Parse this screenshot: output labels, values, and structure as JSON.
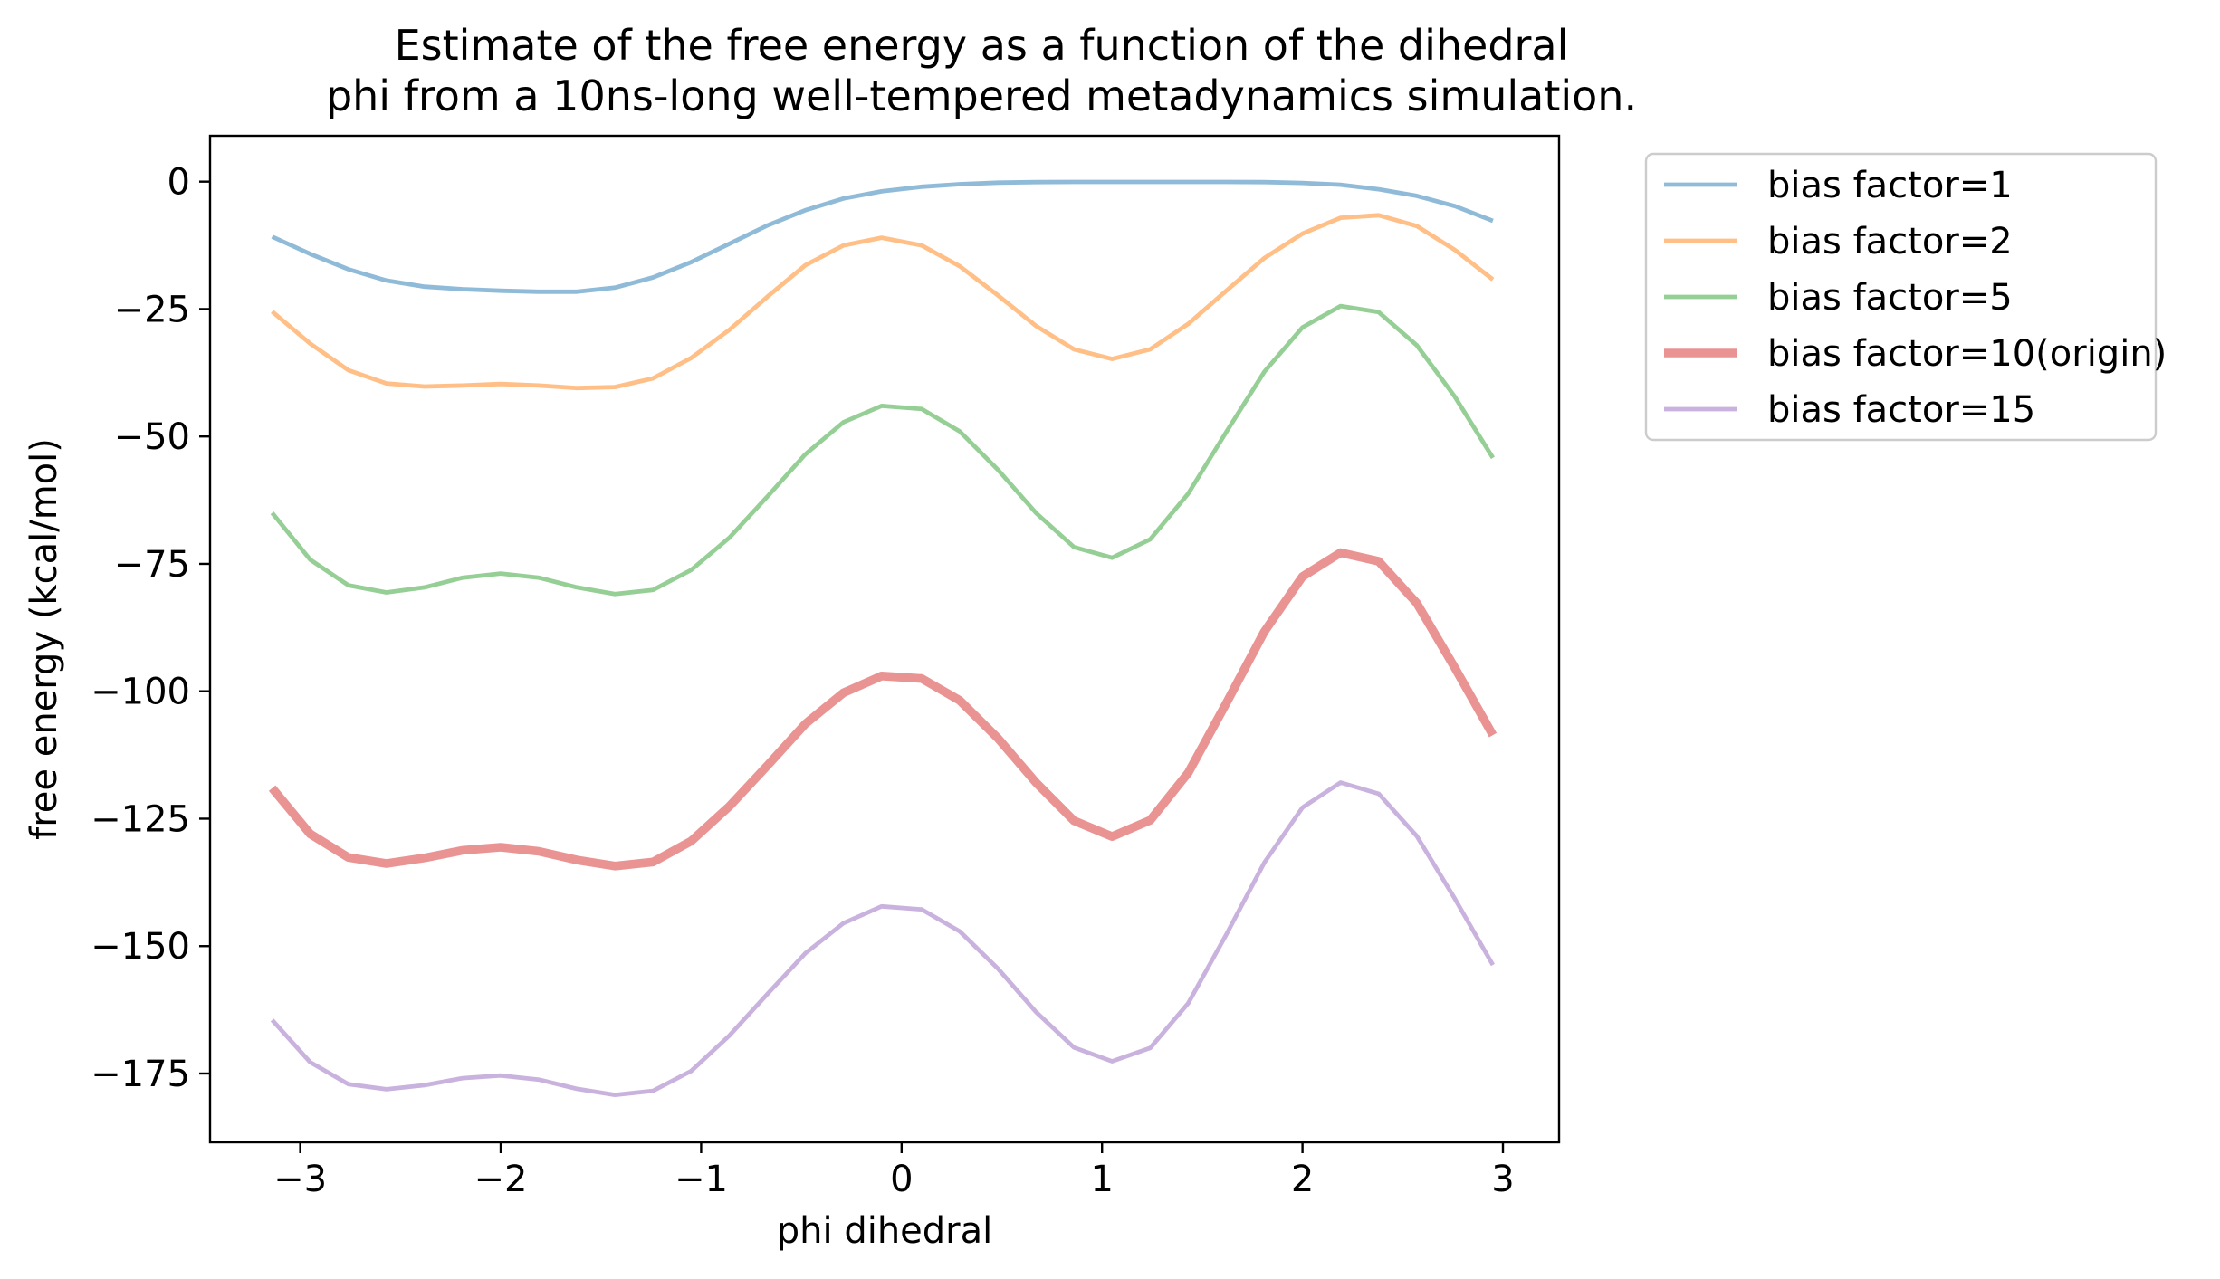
{
  "chart_data": {
    "type": "line",
    "title": [
      "Estimate of the free energy as a function of the dihedral",
      "phi from a 10ns-long well-tempered metadynamics simulation."
    ],
    "xlabel": "phi dihedral",
    "ylabel": "free energy (kcal/mol)",
    "xlim": [
      -3.45,
      3.28
    ],
    "ylim": [
      -188.5,
      9
    ],
    "xticks": [
      -3,
      -2,
      -1,
      0,
      1,
      2,
      3
    ],
    "xtick_labels": [
      "−3",
      "−2",
      "−1",
      "0",
      "1",
      "2",
      "3"
    ],
    "yticks": [
      0,
      -25,
      -50,
      -75,
      -100,
      -125,
      -150,
      -175
    ],
    "ytick_labels": [
      "0",
      "−25",
      "−50",
      "−75",
      "−100",
      "−125",
      "−150",
      "−175"
    ],
    "grid": false,
    "legend_position": "outside-right-top",
    "x": [
      -3.14,
      -2.95,
      -2.76,
      -2.57,
      -2.38,
      -2.19,
      -2.0,
      -1.81,
      -1.62,
      -1.43,
      -1.24,
      -1.05,
      -0.86,
      -0.67,
      -0.48,
      -0.29,
      -0.1,
      0.1,
      0.29,
      0.48,
      0.67,
      0.86,
      1.05,
      1.24,
      1.43,
      1.62,
      1.81,
      2.0,
      2.19,
      2.38,
      2.57,
      2.76,
      2.95
    ],
    "series": [
      {
        "name": "bias factor=1",
        "color": "#1f77b4",
        "width": 2,
        "values": [
          -10.8,
          -14.2,
          -17.2,
          -19.4,
          -20.6,
          -21.1,
          -21.4,
          -21.6,
          -21.6,
          -20.8,
          -18.8,
          -15.8,
          -12.2,
          -8.6,
          -5.6,
          -3.3,
          -1.9,
          -1.0,
          -0.5,
          -0.2,
          -0.1,
          -0.05,
          -0.05,
          -0.05,
          -0.05,
          -0.05,
          -0.1,
          -0.25,
          -0.6,
          -1.5,
          -2.8,
          -4.8,
          -7.7
        ]
      },
      {
        "name": "bias factor=2",
        "color": "#ff7f0e",
        "width": 2,
        "values": [
          -25.5,
          -31.8,
          -37.0,
          -39.6,
          -40.2,
          -40.0,
          -39.7,
          -40.0,
          -40.5,
          -40.3,
          -38.6,
          -34.6,
          -29.1,
          -22.6,
          -16.4,
          -12.5,
          -11.0,
          -12.5,
          -16.6,
          -22.3,
          -28.3,
          -32.9,
          -34.8,
          -32.9,
          -27.9,
          -21.4,
          -15.0,
          -10.2,
          -7.1,
          -6.6,
          -8.7,
          -13.4,
          -19.2
        ]
      },
      {
        "name": "bias factor=5",
        "color": "#2ca02c",
        "width": 2,
        "values": [
          -65.0,
          -74.2,
          -79.2,
          -80.6,
          -79.6,
          -77.7,
          -76.9,
          -77.7,
          -79.6,
          -80.9,
          -80.1,
          -76.2,
          -69.9,
          -61.8,
          -53.5,
          -47.2,
          -44.0,
          -44.6,
          -49.0,
          -56.5,
          -65.0,
          -71.7,
          -73.8,
          -70.2,
          -61.2,
          -49.1,
          -37.3,
          -28.6,
          -24.4,
          -25.6,
          -32.1,
          -42.2,
          -54.2
        ]
      },
      {
        "name": "bias factor=10(origin)",
        "color": "#d62728",
        "width": 4,
        "values": [
          -119.0,
          -128.0,
          -132.6,
          -133.8,
          -132.7,
          -131.2,
          -130.6,
          -131.4,
          -133.1,
          -134.3,
          -133.5,
          -129.4,
          -122.6,
          -114.6,
          -106.4,
          -100.3,
          -97.0,
          -97.5,
          -101.8,
          -109.2,
          -117.9,
          -125.4,
          -128.5,
          -125.3,
          -116.0,
          -102.3,
          -88.3,
          -77.5,
          -72.8,
          -74.5,
          -82.7,
          -95.4,
          -108.6
        ]
      },
      {
        "name": "bias factor=15",
        "color": "#9467bd",
        "width": 2,
        "values": [
          -164.5,
          -172.8,
          -177.1,
          -178.1,
          -177.3,
          -175.9,
          -175.4,
          -176.2,
          -178.0,
          -179.2,
          -178.4,
          -174.5,
          -167.6,
          -159.4,
          -151.4,
          -145.5,
          -142.2,
          -142.8,
          -147.1,
          -154.4,
          -162.9,
          -169.9,
          -172.6,
          -170.0,
          -161.2,
          -147.7,
          -133.6,
          -122.8,
          -117.9,
          -120.1,
          -128.4,
          -140.7,
          -153.7
        ]
      }
    ]
  }
}
